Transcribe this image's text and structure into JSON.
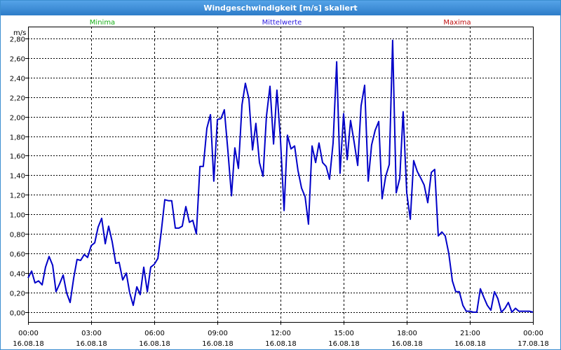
{
  "window": {
    "title": "Windgeschwindigkeit [m/s] skaliert"
  },
  "legend": [
    {
      "label": "Minima",
      "color": "#19b019"
    },
    {
      "label": "Mittelwerte",
      "color": "#2a1ae0"
    },
    {
      "label": "Maxima",
      "color": "#c01010"
    }
  ],
  "chart_data": {
    "type": "line",
    "title": "Windgeschwindigkeit [m/s] skaliert",
    "ylabel": "m/s",
    "xlabel": "",
    "ylim": [
      -0.1,
      2.92
    ],
    "xlim_hours": [
      0,
      24
    ],
    "yticks": [
      "0,00",
      "0,20",
      "0,40",
      "0,60",
      "0,80",
      "1,00",
      "1,20",
      "1,40",
      "1,60",
      "1,80",
      "2,00",
      "2,20",
      "2,40",
      "2,60",
      "2,80"
    ],
    "ytick_values": [
      0,
      0.2,
      0.4,
      0.6,
      0.8,
      1.0,
      1.2,
      1.4,
      1.6,
      1.8,
      2.0,
      2.2,
      2.4,
      2.6,
      2.8
    ],
    "xticks": [
      {
        "time": "00:00",
        "date": "16.08.18",
        "hour": 0
      },
      {
        "time": "03:00",
        "date": "16.08.18",
        "hour": 3
      },
      {
        "time": "06:00",
        "date": "16.08.18",
        "hour": 6
      },
      {
        "time": "09:00",
        "date": "16.08.18",
        "hour": 9
      },
      {
        "time": "12:00",
        "date": "16.08.18",
        "hour": 12
      },
      {
        "time": "15:00",
        "date": "16.08.18",
        "hour": 15
      },
      {
        "time": "18:00",
        "date": "16.08.18",
        "hour": 18
      },
      {
        "time": "21:00",
        "date": "16.08.18",
        "hour": 21
      },
      {
        "time": "00:00",
        "date": "17.08.18",
        "hour": 24
      }
    ],
    "grid": true,
    "series": [
      {
        "name": "Mittelwerte",
        "color": "#0000c8",
        "x": [
          0.0,
          0.17,
          0.33,
          0.5,
          0.67,
          0.83,
          1.0,
          1.17,
          1.33,
          1.5,
          1.67,
          1.83,
          2.0,
          2.17,
          2.33,
          2.5,
          2.67,
          2.83,
          3.0,
          3.17,
          3.33,
          3.5,
          3.67,
          3.83,
          4.0,
          4.17,
          4.33,
          4.5,
          4.67,
          4.83,
          5.0,
          5.17,
          5.33,
          5.5,
          5.67,
          5.83,
          6.0,
          6.17,
          6.33,
          6.5,
          6.67,
          6.83,
          7.0,
          7.17,
          7.33,
          7.5,
          7.67,
          7.83,
          8.0,
          8.17,
          8.33,
          8.5,
          8.67,
          8.83,
          9.0,
          9.17,
          9.33,
          9.5,
          9.67,
          9.83,
          10.0,
          10.17,
          10.33,
          10.5,
          10.67,
          10.83,
          11.0,
          11.17,
          11.33,
          11.5,
          11.67,
          11.83,
          12.0,
          12.17,
          12.33,
          12.5,
          12.67,
          12.83,
          13.0,
          13.17,
          13.33,
          13.5,
          13.67,
          13.83,
          14.0,
          14.17,
          14.33,
          14.5,
          14.67,
          14.83,
          15.0,
          15.17,
          15.33,
          15.5,
          15.67,
          15.83,
          16.0,
          16.17,
          16.33,
          16.5,
          16.67,
          16.83,
          17.0,
          17.17,
          17.33,
          17.5,
          17.67,
          17.83,
          18.0,
          18.17,
          18.33,
          18.5,
          18.67,
          18.83,
          19.0,
          19.17,
          19.33,
          19.5,
          19.67,
          19.83,
          20.0,
          20.17,
          20.33,
          20.5,
          20.67,
          20.83,
          21.0,
          21.17,
          21.33,
          21.5,
          21.67,
          21.83,
          22.0,
          22.17,
          22.33,
          22.5,
          22.67,
          22.83,
          23.0,
          23.17,
          23.33,
          23.5,
          23.67,
          23.83,
          24.0
        ],
        "values": [
          0.35,
          0.42,
          0.3,
          0.32,
          0.28,
          0.46,
          0.57,
          0.48,
          0.21,
          0.29,
          0.38,
          0.2,
          0.1,
          0.35,
          0.54,
          0.53,
          0.59,
          0.56,
          0.68,
          0.71,
          0.87,
          0.96,
          0.7,
          0.88,
          0.72,
          0.5,
          0.51,
          0.33,
          0.4,
          0.2,
          0.07,
          0.26,
          0.18,
          0.46,
          0.21,
          0.46,
          0.49,
          0.55,
          0.82,
          1.15,
          1.14,
          1.14,
          0.86,
          0.86,
          0.88,
          1.08,
          0.92,
          0.94,
          0.8,
          1.49,
          1.49,
          1.88,
          2.02,
          1.34,
          1.97,
          1.98,
          2.07,
          1.65,
          1.19,
          1.68,
          1.47,
          2.12,
          2.34,
          2.18,
          1.66,
          1.93,
          1.53,
          1.39,
          2.0,
          2.31,
          1.72,
          2.27,
          1.76,
          1.04,
          1.81,
          1.67,
          1.7,
          1.45,
          1.27,
          1.18,
          0.9,
          1.7,
          1.53,
          1.73,
          1.53,
          1.49,
          1.36,
          1.73,
          2.56,
          1.42,
          2.03,
          1.56,
          1.96,
          1.74,
          1.5,
          2.11,
          2.32,
          1.34,
          1.71,
          1.86,
          1.95,
          1.16,
          1.39,
          1.51,
          2.78,
          1.22,
          1.37,
          2.05,
          1.22,
          0.95,
          1.55,
          1.44,
          1.37,
          1.3,
          1.12,
          1.43,
          1.46,
          0.78,
          0.82,
          0.78,
          0.6,
          0.32,
          0.21,
          0.21,
          0.07,
          0.01,
          0.01,
          0.0,
          0.0,
          0.24,
          0.15,
          0.07,
          0.02,
          0.21,
          0.14,
          0.0,
          0.04,
          0.1,
          0.0,
          0.04,
          0.01,
          0.01,
          0.01,
          0.01,
          0.0
        ]
      }
    ]
  }
}
